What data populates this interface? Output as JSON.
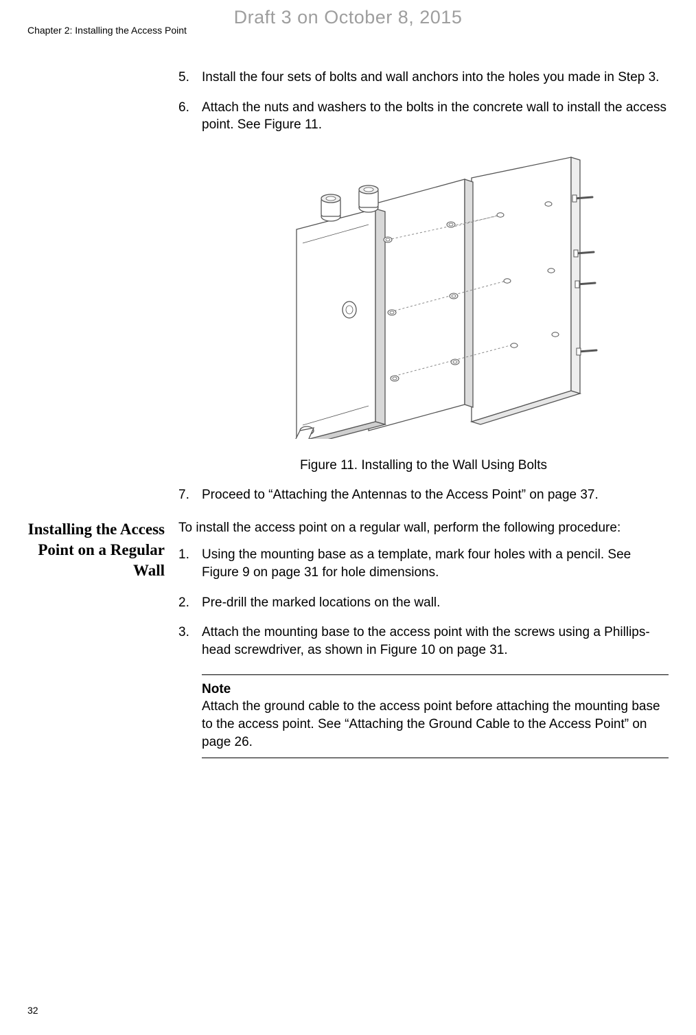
{
  "draft_stamp": "Draft 3 on October 8, 2015",
  "header": "Chapter 2: Installing the Access Point",
  "page_number": "32",
  "steps_top": [
    {
      "num": "5.",
      "text": "Install the four sets of bolts and wall anchors into the holes you made in Step 3."
    },
    {
      "num": "6.",
      "text": "Attach the nuts and washers to the bolts in the concrete wall to install the access point. See Figure 11."
    }
  ],
  "figure_caption": "Figure 11. Installing to the Wall Using Bolts",
  "step_after_figure": {
    "num": "7.",
    "text": "Proceed to “Attaching the Antennas to the Access Point” on page 37."
  },
  "section_heading": "Installing the Access Point on a Regular Wall",
  "procedure_intro": "To install the access point on a regular wall, perform the following procedure:",
  "procedure_steps": [
    {
      "num": "1.",
      "text": "Using the mounting base as a template, mark four holes with a pencil. See Figure 9 on page 31 for hole dimensions."
    },
    {
      "num": "2.",
      "text": "Pre-drill the marked locations on the wall."
    },
    {
      "num": "3.",
      "text": "Attach the mounting base to the access point with the screws using a Phillips-head screwdriver, as shown in Figure 10 on page 31."
    }
  ],
  "note": {
    "label": "Note",
    "text": "Attach the ground cable to the access point before attaching the mounting base to the access point. See “Attaching the Ground Cable to the Access Point” on page 26."
  },
  "figure": {
    "stroke_color": "#555555",
    "dash_color": "#888888",
    "fill_light": "#f4f4f4",
    "fill_white": "#ffffff",
    "stroke_width": 1.3,
    "dash_pattern": "3,3"
  }
}
